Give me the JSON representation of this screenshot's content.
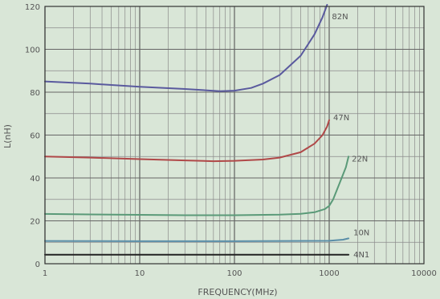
{
  "chart_data": {
    "type": "line",
    "xlabel": "FREQUENCY(MHz)",
    "ylabel": "L(nH)",
    "xscale": "log",
    "xlim": [
      1,
      10000
    ],
    "ylim": [
      0,
      120
    ],
    "grid": true,
    "x_ticks": [
      1,
      10,
      100,
      1000,
      10000
    ],
    "x_tick_labels": [
      "1",
      "10",
      "100",
      "1000",
      "10000"
    ],
    "y_ticks": [
      0,
      20,
      40,
      60,
      80,
      100,
      120
    ],
    "y_tick_labels": [
      "0",
      "20",
      "40",
      "60",
      "80",
      "100",
      "120"
    ],
    "series": [
      {
        "name": "82N",
        "color": "#5a5a9e",
        "x": [
          1,
          3,
          10,
          30,
          70,
          100,
          150,
          200,
          300,
          500,
          700,
          850,
          950
        ],
        "y": [
          85,
          84,
          82.5,
          81.5,
          80.5,
          80.7,
          82,
          84,
          88,
          97,
          107,
          115,
          121
        ]
      },
      {
        "name": "47N",
        "color": "#b04848",
        "x": [
          1,
          3,
          10,
          30,
          60,
          100,
          200,
          300,
          500,
          700,
          850,
          950,
          1000
        ],
        "y": [
          50,
          49.5,
          48.8,
          48.2,
          47.8,
          48,
          48.6,
          49.5,
          52,
          56,
          60,
          64,
          67
        ]
      },
      {
        "name": "22N",
        "color": "#5a9a78",
        "x": [
          1,
          3,
          10,
          30,
          100,
          300,
          500,
          700,
          900,
          1000,
          1100,
          1300,
          1500,
          1600
        ],
        "y": [
          23.2,
          23,
          22.8,
          22.6,
          22.6,
          22.9,
          23.3,
          24,
          25.5,
          27,
          30,
          38,
          45,
          50
        ]
      },
      {
        "name": "10N",
        "color": "#5a8ea8",
        "x": [
          1,
          10,
          100,
          1000,
          1400,
          1600
        ],
        "y": [
          10.6,
          10.5,
          10.5,
          10.7,
          11.2,
          11.8
        ]
      },
      {
        "name": "4N1",
        "color": "#222222",
        "x": [
          1,
          10,
          100,
          1000,
          1600
        ],
        "y": [
          4.2,
          4.2,
          4.2,
          4.2,
          4.2
        ]
      }
    ]
  }
}
